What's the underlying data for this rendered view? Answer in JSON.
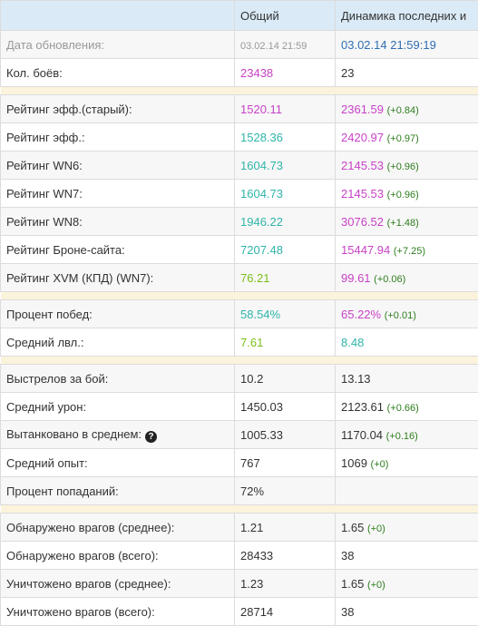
{
  "header": {
    "col_total": "Общий",
    "col_dynamics": "Динамика последних и"
  },
  "rows": {
    "update": {
      "label": "Дата обновления:",
      "total": "03.02.14 21:59",
      "dyn": "03.02.14 21:59:19"
    },
    "battles": {
      "label": "Кол. боёв:",
      "total": "23438",
      "dyn": "23"
    },
    "eff_old": {
      "label": "Рейтинг эфф.(старый):",
      "total": "1520.11",
      "dyn": "2361.59",
      "delta": "(+0.84)"
    },
    "eff": {
      "label": "Рейтинг эфф.:",
      "total": "1528.36",
      "dyn": "2420.97",
      "delta": "(+0.97)"
    },
    "wn6": {
      "label": "Рейтинг WN6:",
      "total": "1604.73",
      "dyn": "2145.53",
      "delta": "(+0.96)"
    },
    "wn7": {
      "label": "Рейтинг WN7:",
      "total": "1604.73",
      "dyn": "2145.53",
      "delta": "(+0.96)"
    },
    "wn8": {
      "label": "Рейтинг WN8:",
      "total": "1946.22",
      "dyn": "3076.52",
      "delta": "(+1.48)"
    },
    "armor": {
      "label": "Рейтинг Броне-сайта:",
      "total": "7207.48",
      "dyn": "15447.94",
      "delta": "(+7.25)"
    },
    "xvm": {
      "label": "Рейтинг XVM (КПД) (WN7):",
      "total": "76.21",
      "dyn": "99.61",
      "delta": "(+0.06)"
    },
    "wins": {
      "label": "Процент побед:",
      "total": "58.54%",
      "dyn": "65.22%",
      "delta": "(+0.01)"
    },
    "avg_lvl": {
      "label": "Средний лвл.:",
      "total": "7.61",
      "dyn": "8.48"
    },
    "shots": {
      "label": "Выстрелов за бой:",
      "total": "10.2",
      "dyn": "13.13"
    },
    "dmg": {
      "label": "Средний урон:",
      "total": "1450.03",
      "dyn": "2123.61",
      "delta": "(+0.66)"
    },
    "tanked": {
      "label": "Вытанковано в среднем:",
      "help": "?",
      "total": "1005.33",
      "dyn": "1170.04",
      "delta": "(+0.16)"
    },
    "xp": {
      "label": "Средний опыт:",
      "total": "767",
      "dyn": "1069",
      "delta": "(+0)"
    },
    "hit": {
      "label": "Процент попаданий:",
      "total": "72%",
      "dyn": ""
    },
    "spot_avg": {
      "label": "Обнаружено врагов (среднее):",
      "total": "1.21",
      "dyn": "1.65",
      "delta": "(+0)"
    },
    "spot_all": {
      "label": "Обнаружено врагов (всего):",
      "total": "28433",
      "dyn": "38"
    },
    "kill_avg": {
      "label": "Уничтожено врагов (среднее):",
      "total": "1.23",
      "dyn": "1.65",
      "delta": "(+0)"
    },
    "kill_all": {
      "label": "Уничтожено врагов (всего):",
      "total": "28714",
      "dyn": "38"
    }
  },
  "colors": {
    "purple": "#c842c6",
    "teal": "#2fb5a8",
    "green": "#7cbf1b",
    "delta": "#2e7d1e",
    "header_bg": "#daeaf6",
    "separator": "#fcf3dc"
  }
}
